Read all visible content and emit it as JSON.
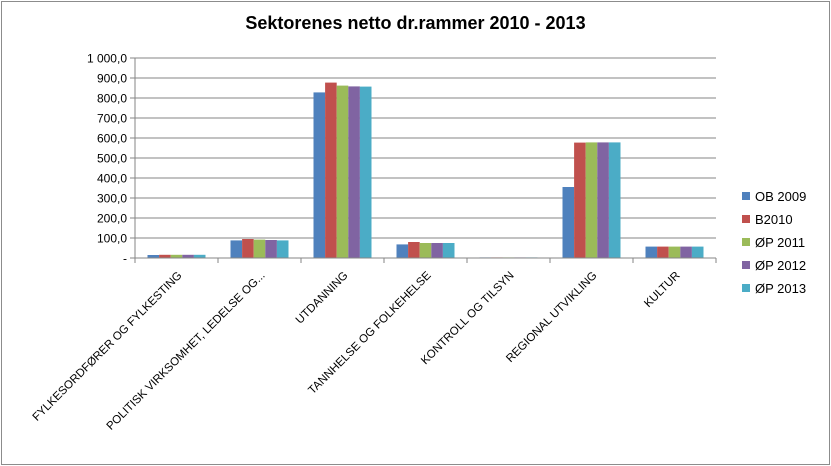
{
  "chart_data": {
    "type": "bar",
    "title": "Sektorenes netto dr.rammer 2010 - 2013",
    "xlabel": "",
    "ylabel": "",
    "ylim": [
      0,
      1000
    ],
    "yticks": [
      {
        "value": 0,
        "label": "-"
      },
      {
        "value": 100,
        "label": "100,0"
      },
      {
        "value": 200,
        "label": "200,0"
      },
      {
        "value": 300,
        "label": "300,0"
      },
      {
        "value": 400,
        "label": "400,0"
      },
      {
        "value": 500,
        "label": "500,0"
      },
      {
        "value": 600,
        "label": "600,0"
      },
      {
        "value": 700,
        "label": "700,0"
      },
      {
        "value": 800,
        "label": "800,0"
      },
      {
        "value": 900,
        "label": "900,0"
      },
      {
        "value": 1000,
        "label": "1 000,0"
      }
    ],
    "categories": [
      "FYLKESORDFØRER OG FYLKESTING",
      "POLITISK VIRKSOMHET,  LEDELSE OG...",
      "UTDANNING",
      "TANNHELSE OG FOLKEHELSE",
      "KONTROLL OG TILSYN",
      "REGIONAL UTVIKLING",
      "KULTUR"
    ],
    "series": [
      {
        "name": "OB 2009",
        "color": "#4f81bd",
        "values": [
          15,
          88,
          828,
          68,
          3,
          355,
          57
        ]
      },
      {
        "name": "B2010",
        "color": "#c0504d",
        "values": [
          16,
          95,
          877,
          80,
          3,
          577,
          57
        ]
      },
      {
        "name": "ØP 2011",
        "color": "#9bbb59",
        "values": [
          16,
          92,
          862,
          75,
          3,
          578,
          57
        ]
      },
      {
        "name": "ØP 2012",
        "color": "#8064a2",
        "values": [
          16,
          90,
          858,
          75,
          3,
          578,
          57
        ]
      },
      {
        "name": "ØP 2013",
        "color": "#4bacc6",
        "values": [
          16,
          88,
          857,
          75,
          3,
          578,
          57
        ]
      }
    ],
    "grid": true,
    "legend_position": "right"
  }
}
